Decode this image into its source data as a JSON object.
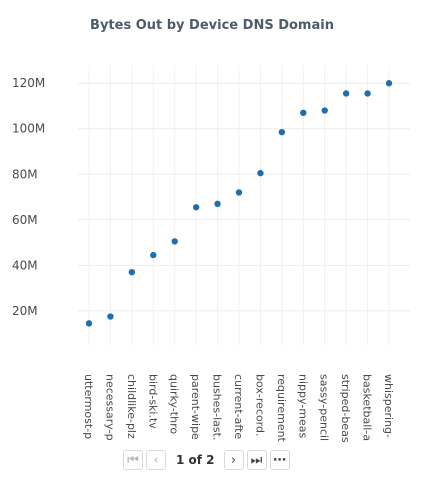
{
  "chart_data": {
    "type": "scatter",
    "title": "Bytes Out by Device DNS Domain",
    "xlabel": "",
    "ylabel": "",
    "categories": [
      "uttermost-p",
      "necessary-p",
      "childlike-plz",
      "bird-ski.tv",
      "quirky-thro",
      "parent-wipe",
      "bushes-last.",
      "current-afte",
      "box-record.",
      "requirement",
      "nippy-meas",
      "sassy-pencil",
      "striped-beas",
      "basketball-a",
      "whispering-"
    ],
    "values": [
      14.5,
      17.5,
      37,
      44.5,
      50.5,
      65.5,
      67,
      72,
      80.5,
      98.5,
      107,
      108,
      115.5,
      115.5,
      120
    ],
    "value_unit": "M",
    "ylim": [
      5,
      128
    ],
    "yticks": [
      "20M",
      "40M",
      "60M",
      "80M",
      "100M",
      "120M"
    ],
    "ytick_values": [
      20,
      40,
      60,
      80,
      100,
      120
    ],
    "grid": true,
    "point_color": "#1f6fae"
  },
  "pagination": {
    "label": "1 of 2",
    "first_icon": "first-page-icon",
    "prev_icon": "previous-page-icon",
    "next_icon": "next-page-icon",
    "last_icon": "last-page-icon",
    "more_icon": "more-options-icon"
  }
}
